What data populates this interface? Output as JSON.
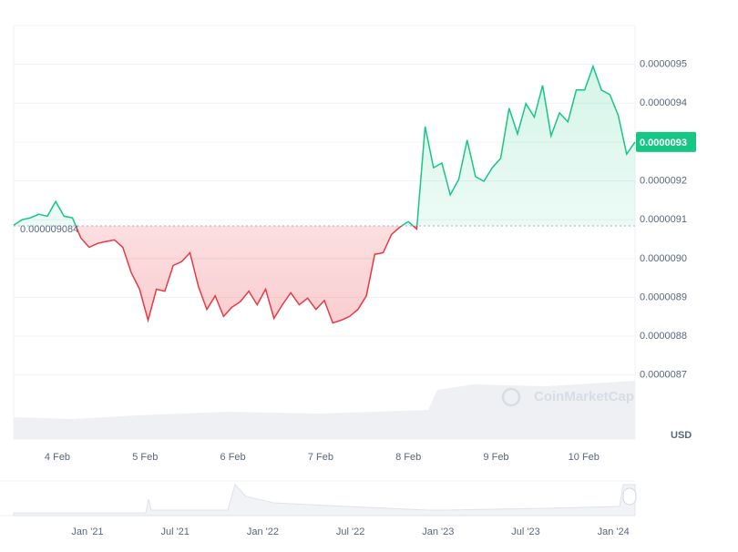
{
  "chart_data": {
    "type": "line",
    "baseline": {
      "value": 9.084e-06,
      "label": "0.000009084"
    },
    "current_price": {
      "value": 9.3e-06,
      "label": "0.0000093"
    },
    "up_color": "#16c784",
    "down_color": "#ea3943",
    "currency": "USD",
    "watermark": "CoinMarketCap",
    "xtick_labels": [
      "4 Feb",
      "5 Feb",
      "6 Feb",
      "7 Feb",
      "8 Feb",
      "9 Feb",
      "10 Feb"
    ],
    "navigator_labels": [
      "Jan '21",
      "Jul '21",
      "Jan '22",
      "Jul '22",
      "Jan '23",
      "Jul '23",
      "Jan '24"
    ],
    "ylim": [
      8.54e-06,
      9.6e-06
    ],
    "yticks": [
      {
        "value": 8.7e-06,
        "label": "0.0000087"
      },
      {
        "value": 8.8e-06,
        "label": "0.0000088"
      },
      {
        "value": 8.9e-06,
        "label": "0.0000089"
      },
      {
        "value": 9e-06,
        "label": "0.0000090"
      },
      {
        "value": 9.1e-06,
        "label": "0.0000091"
      },
      {
        "value": 9.2e-06,
        "label": "0.0000092"
      },
      {
        "value": 9.3e-06,
        "label": "0.0000093"
      },
      {
        "value": 9.4e-06,
        "label": "0.0000094"
      },
      {
        "value": 9.5e-06,
        "label": "0.0000095"
      }
    ],
    "grid": true,
    "values": [
      9.086e-06,
      9.1e-06,
      9.105e-06,
      9.114e-06,
      9.109e-06,
      9.147e-06,
      9.109e-06,
      9.105e-06,
      9.053e-06,
      9.029e-06,
      9.039e-06,
      9.044e-06,
      9.048e-06,
      9.029e-06,
      8.964e-06,
      8.921e-06,
      8.841e-06,
      8.921e-06,
      8.916e-06,
      8.982e-06,
      8.992e-06,
      9.015e-06,
      8.928e-06,
      8.869e-06,
      8.904e-06,
      8.851e-06,
      8.875e-06,
      8.889e-06,
      8.916e-06,
      8.881e-06,
      8.921e-06,
      8.846e-06,
      8.881e-06,
      8.912e-06,
      8.881e-06,
      8.898e-06,
      8.869e-06,
      8.892e-06,
      8.834e-06,
      8.841e-06,
      8.851e-06,
      8.869e-06,
      8.904e-06,
      9.011e-06,
      9.015e-06,
      9.062e-06,
      9.081e-06,
      9.095e-06,
      9.076e-06,
      9.34e-06,
      9.234e-06,
      9.246e-06,
      9.164e-06,
      9.204e-06,
      9.305e-06,
      9.211e-06,
      9.199e-06,
      9.234e-06,
      9.258e-06,
      9.387e-06,
      9.321e-06,
      9.399e-06,
      9.364e-06,
      9.446e-06,
      9.316e-06,
      9.375e-06,
      9.352e-06,
      9.434e-06,
      9.434e-06,
      9.495e-06,
      9.434e-06,
      9.422e-06,
      9.368e-06,
      9.269e-06,
      9.3e-06
    ]
  }
}
